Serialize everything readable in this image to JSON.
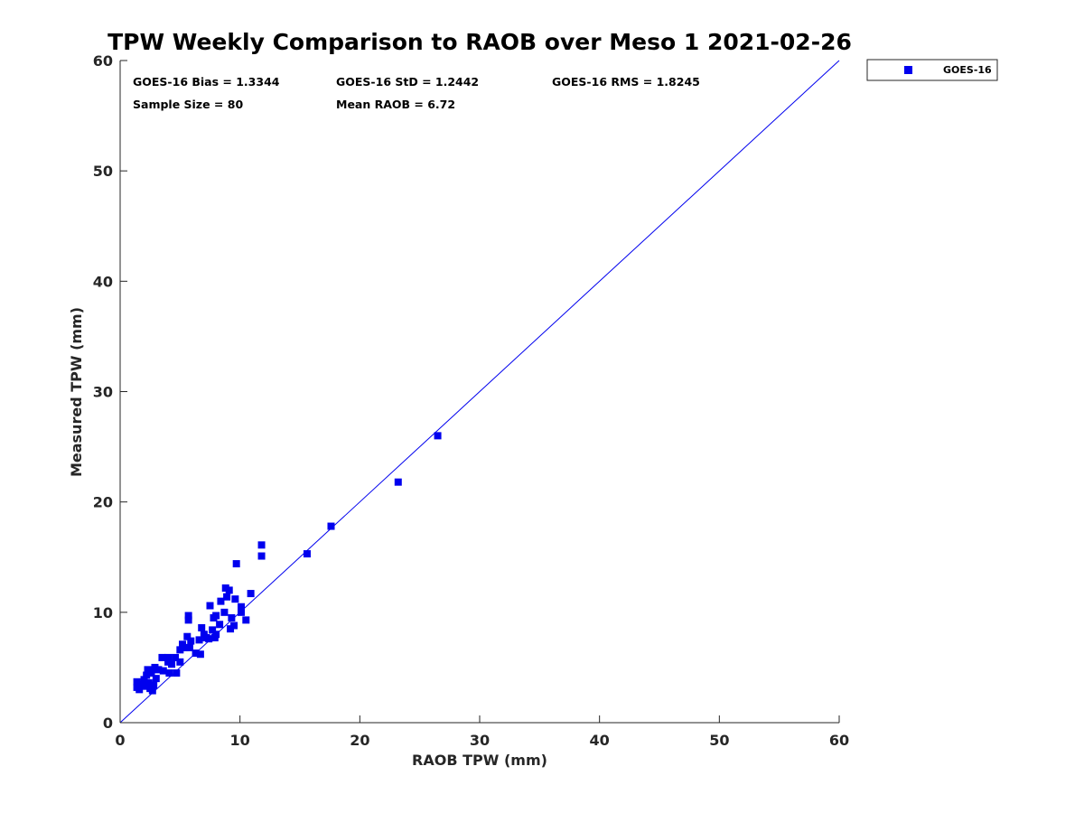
{
  "chart_data": {
    "type": "scatter",
    "title": "TPW Weekly Comparison to RAOB over Meso 1 2021-02-26",
    "xlabel": "RAOB TPW (mm)",
    "ylabel": "Measured TPW (mm)",
    "xlim": [
      0,
      60
    ],
    "ylim": [
      0,
      60
    ],
    "xticks": [
      0,
      10,
      20,
      30,
      40,
      50,
      60
    ],
    "yticks": [
      0,
      10,
      20,
      30,
      40,
      50,
      60
    ],
    "xtick_labels": [
      "0",
      "10",
      "20",
      "30",
      "40",
      "50",
      "60"
    ],
    "ytick_labels": [
      "0",
      "10",
      "20",
      "30",
      "40",
      "50",
      "60"
    ],
    "grid": false,
    "reference_line": {
      "x": [
        0,
        60
      ],
      "y": [
        0,
        60
      ],
      "color": "#0000ee"
    },
    "stats": {
      "bias": "GOES-16 Bias = 1.3344",
      "std": "GOES-16 StD = 1.2442",
      "rms": "GOES-16 RMS = 1.8245",
      "sample_size": "Sample Size = 80",
      "mean_raob": "Mean RAOB = 6.72"
    },
    "legend": {
      "position": "outside-top-right",
      "entries": [
        "GOES-16"
      ]
    },
    "series": [
      {
        "name": "GOES-16",
        "color": "#0000ee",
        "marker": "square",
        "points": [
          [
            1.4,
            3.7
          ],
          [
            1.4,
            3.2
          ],
          [
            1.6,
            3.0
          ],
          [
            1.8,
            3.5
          ],
          [
            2.0,
            3.9
          ],
          [
            2.0,
            3.3
          ],
          [
            2.2,
            4.3
          ],
          [
            2.3,
            4.8
          ],
          [
            2.4,
            3.6
          ],
          [
            2.5,
            3.1
          ],
          [
            2.6,
            4.5
          ],
          [
            2.7,
            2.9
          ],
          [
            2.8,
            3.4
          ],
          [
            2.9,
            5.0
          ],
          [
            3.0,
            4.0
          ],
          [
            3.2,
            4.8
          ],
          [
            3.5,
            5.9
          ],
          [
            3.6,
            4.7
          ],
          [
            4.0,
            5.9
          ],
          [
            4.0,
            5.5
          ],
          [
            4.1,
            4.5
          ],
          [
            4.3,
            5.3
          ],
          [
            4.6,
            5.9
          ],
          [
            4.7,
            4.5
          ],
          [
            5.0,
            5.5
          ],
          [
            5.0,
            6.6
          ],
          [
            5.2,
            7.1
          ],
          [
            5.4,
            6.8
          ],
          [
            5.6,
            7.8
          ],
          [
            5.7,
            9.3
          ],
          [
            5.7,
            9.7
          ],
          [
            5.8,
            6.8
          ],
          [
            5.9,
            7.4
          ],
          [
            6.3,
            6.3
          ],
          [
            6.6,
            7.5
          ],
          [
            6.7,
            6.2
          ],
          [
            6.8,
            8.6
          ],
          [
            7.0,
            8.0
          ],
          [
            7.2,
            7.7
          ],
          [
            7.4,
            7.6
          ],
          [
            7.5,
            10.6
          ],
          [
            7.7,
            8.4
          ],
          [
            7.8,
            9.5
          ],
          [
            7.9,
            7.7
          ],
          [
            8.0,
            9.7
          ],
          [
            8.0,
            8.0
          ],
          [
            8.3,
            8.9
          ],
          [
            8.4,
            11.0
          ],
          [
            8.7,
            10.0
          ],
          [
            8.8,
            12.2
          ],
          [
            8.9,
            11.4
          ],
          [
            9.1,
            12.0
          ],
          [
            9.2,
            8.5
          ],
          [
            9.3,
            9.5
          ],
          [
            9.5,
            8.8
          ],
          [
            9.6,
            11.2
          ],
          [
            9.7,
            14.4
          ],
          [
            10.1,
            10.5
          ],
          [
            10.1,
            10.0
          ],
          [
            10.5,
            9.3
          ],
          [
            10.9,
            11.7
          ],
          [
            11.8,
            16.1
          ],
          [
            11.8,
            15.1
          ],
          [
            15.6,
            15.3
          ],
          [
            17.6,
            17.8
          ],
          [
            23.2,
            21.8
          ],
          [
            26.5,
            26.0
          ]
        ]
      }
    ]
  }
}
